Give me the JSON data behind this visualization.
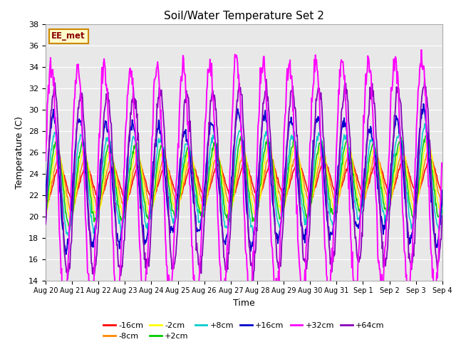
{
  "title": "Soil/Water Temperature Set 2",
  "xlabel": "Time",
  "ylabel": "Temperature (C)",
  "ylim": [
    14,
    38
  ],
  "yticks": [
    14,
    16,
    18,
    20,
    22,
    24,
    26,
    28,
    30,
    32,
    34,
    36,
    38
  ],
  "series_colors": {
    "-16cm": "#ff0000",
    "-8cm": "#ff8800",
    "-2cm": "#ffff00",
    "+2cm": "#00cc00",
    "+8cm": "#00cccc",
    "+16cm": "#0000cc",
    "+32cm": "#ff00ff",
    "+64cm": "#8800bb"
  },
  "legend_label": "EE_met",
  "bg_color": "#e8e8e8",
  "fig_bg": "#ffffff",
  "n_points": 720,
  "base_temp": 23.0,
  "amplitudes": {
    "-16cm": 1.5,
    "-8cm": 2.2,
    "-2cm": 3.0,
    "+2cm": 3.5,
    "+8cm": 4.2,
    "+16cm": 5.5,
    "+32cm": 10.5,
    "+64cm": 8.0
  },
  "phase_offsets": {
    "-16cm": 1.8,
    "-8cm": 1.5,
    "-2cm": 1.2,
    "+2cm": 0.9,
    "+8cm": 0.6,
    "+16cm": 0.2,
    "+32cm": -0.3,
    "+64cm": 0.5
  }
}
